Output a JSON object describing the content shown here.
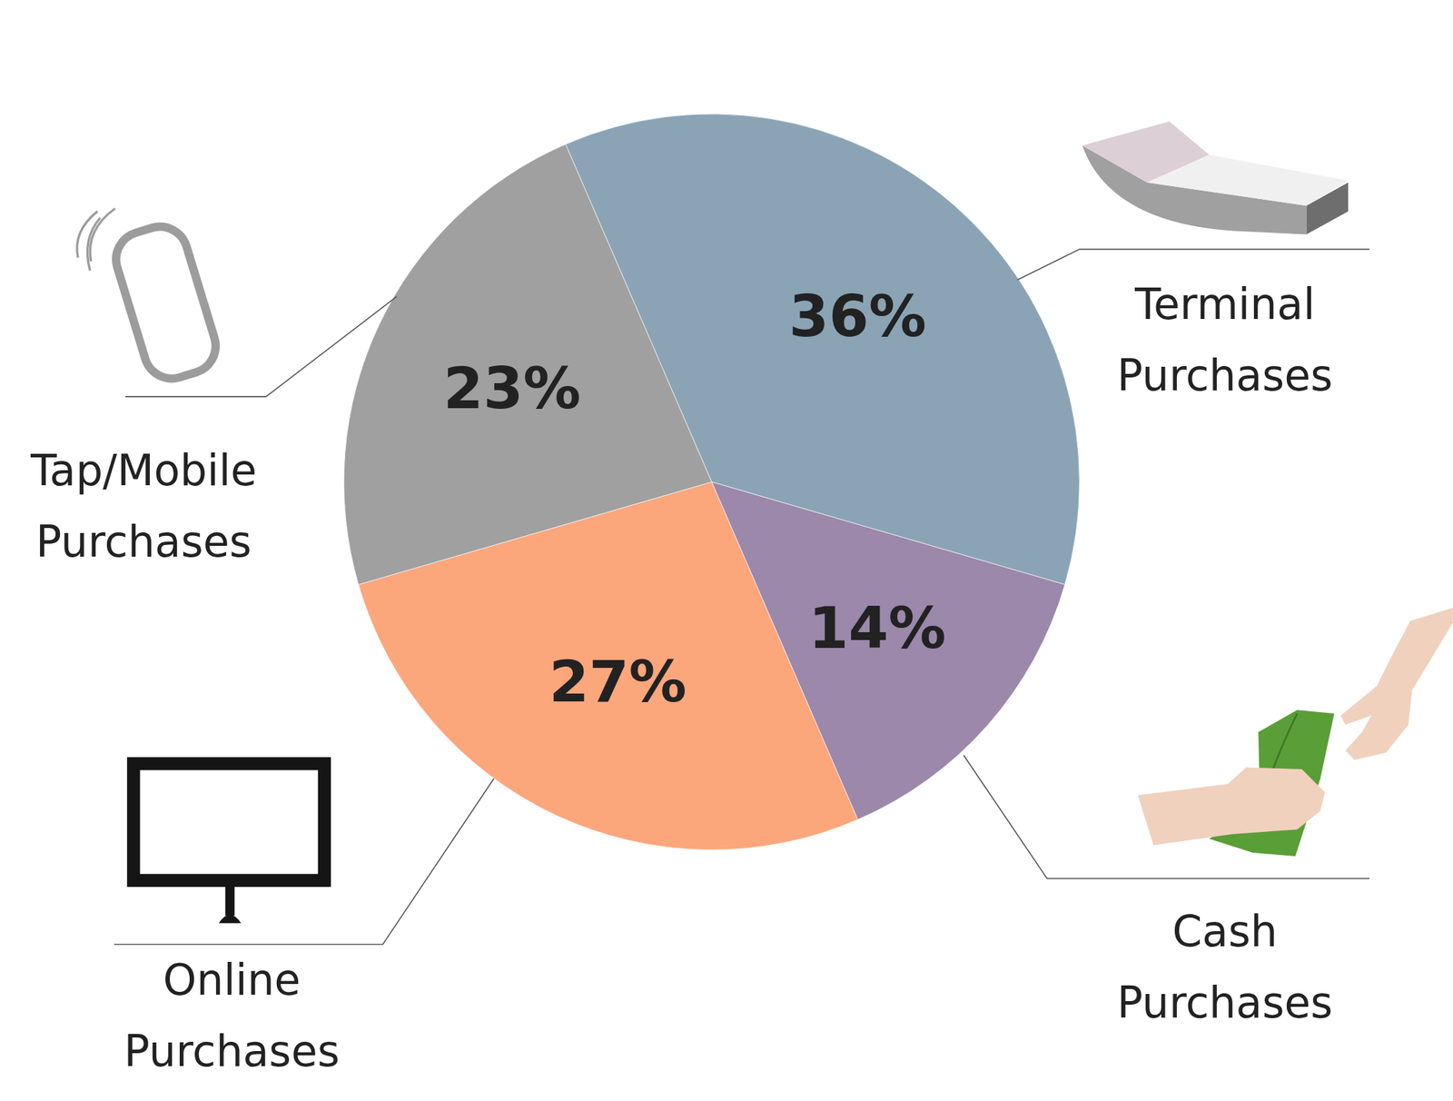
{
  "chart_data": {
    "type": "pie",
    "categories": [
      "Terminal Purchases",
      "Cash Purchases",
      "Online Purchases",
      "Tap/Mobile Purchases"
    ],
    "values": [
      36,
      14,
      27,
      23
    ],
    "value_labels": [
      "36%",
      "14%",
      "27%",
      "23%"
    ],
    "colors": [
      "#8aa4b5",
      "#9b88ab",
      "#fca67c",
      "#a0a0a0"
    ],
    "data_labels": true
  }
}
